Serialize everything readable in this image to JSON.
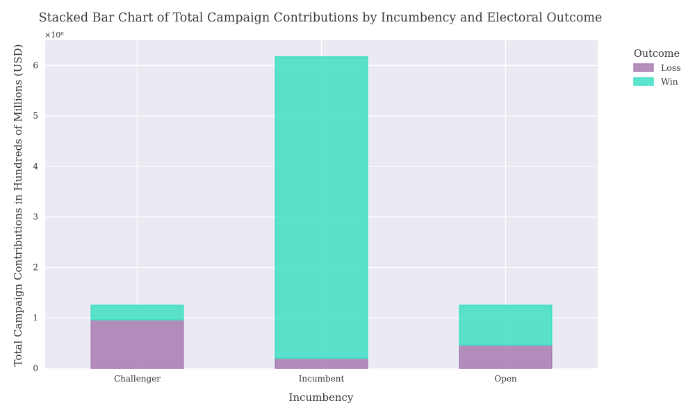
{
  "colors": {
    "loss": "#A87CB2",
    "win": "#40DFC4",
    "background": "#EAEAF2",
    "grid": "#FFFFFF"
  },
  "chart_data": {
    "type": "bar",
    "stacked": true,
    "title": "Stacked Bar Chart of Total Campaign Contributions by Incumbency and Electoral Outcome",
    "xlabel": "Incumbency",
    "ylabel": "Total Campaign Contributions in Hundreds of Millions (USD)",
    "y_multiplier_label": "×10⁸",
    "categories": [
      "Challenger",
      "Incumbent",
      "Open"
    ],
    "ylim": [
      0,
      650000000
    ],
    "yticks": [
      0,
      100000000,
      200000000,
      300000000,
      400000000,
      500000000,
      600000000
    ],
    "ytick_labels": [
      "0",
      "1",
      "2",
      "3",
      "4",
      "5",
      "6"
    ],
    "grid": true,
    "legend": {
      "title": "Outcome",
      "placement": "outside-top-right",
      "entries": [
        "Loss",
        "Win"
      ]
    },
    "series": [
      {
        "name": "Loss",
        "values": [
          96000000,
          20000000,
          46000000
        ]
      },
      {
        "name": "Win",
        "values": [
          29000000,
          597000000,
          79000000
        ]
      }
    ]
  }
}
